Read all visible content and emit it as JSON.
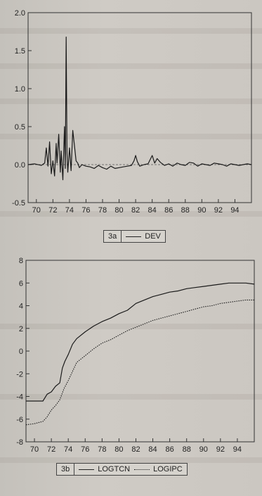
{
  "chart_data": [
    {
      "id": "3a",
      "type": "line",
      "legend_tag": "3a",
      "ylim": [
        -0.5,
        2.0
      ],
      "yticks": [
        "2.0",
        "1.5",
        "1.0",
        "0.5",
        "0.0",
        "-0.5"
      ],
      "ytick_values": [
        2.0,
        1.5,
        1.0,
        0.5,
        0.0,
        -0.5
      ],
      "xlim": [
        1969,
        1996
      ],
      "xticks": [
        "70",
        "72",
        "74",
        "76",
        "78",
        "80",
        "82",
        "84",
        "86",
        "88",
        "90",
        "92",
        "94"
      ],
      "xtick_values": [
        1970,
        1972,
        1974,
        1976,
        1978,
        1980,
        1982,
        1984,
        1986,
        1988,
        1990,
        1992,
        1994
      ],
      "series": [
        {
          "name": "DEV",
          "style": "solid",
          "x": [
            1969,
            1969.8,
            1970.6,
            1971.0,
            1971.2,
            1971.4,
            1971.6,
            1971.8,
            1972.0,
            1972.2,
            1972.4,
            1972.5,
            1972.7,
            1972.9,
            1973.0,
            1973.2,
            1973.4,
            1973.5,
            1973.6,
            1973.7,
            1973.8,
            1974.0,
            1974.2,
            1974.4,
            1974.6,
            1974.8,
            1975.0,
            1975.2,
            1975.5,
            1976.0,
            1976.5,
            1977.0,
            1977.5,
            1978.0,
            1978.5,
            1979.0,
            1979.5,
            1980.0,
            1980.5,
            1981.0,
            1981.5,
            1981.8,
            1982.0,
            1982.2,
            1982.5,
            1983.0,
            1983.5,
            1984.0,
            1984.3,
            1984.6,
            1985.0,
            1985.5,
            1986.0,
            1986.5,
            1987.0,
            1987.5,
            1988.0,
            1988.5,
            1989.0,
            1989.5,
            1990.0,
            1990.5,
            1991.0,
            1991.5,
            1992.0,
            1992.5,
            1993.0,
            1993.5,
            1994.0,
            1994.5,
            1995.0,
            1995.5,
            1996.0
          ],
          "y": [
            0.0,
            0.01,
            -0.01,
            0.02,
            0.22,
            -0.02,
            0.3,
            -0.12,
            0.05,
            -0.15,
            0.28,
            0.02,
            0.4,
            -0.1,
            0.18,
            -0.2,
            0.5,
            -0.05,
            1.68,
            0.15,
            -0.1,
            0.22,
            -0.08,
            0.45,
            0.25,
            0.05,
            0.02,
            -0.04,
            0.0,
            -0.02,
            -0.03,
            -0.05,
            -0.01,
            -0.04,
            -0.06,
            -0.02,
            -0.05,
            -0.04,
            -0.03,
            -0.02,
            -0.01,
            0.05,
            0.12,
            0.04,
            -0.02,
            0.0,
            0.01,
            0.12,
            0.02,
            0.08,
            0.03,
            -0.01,
            0.01,
            -0.02,
            0.02,
            0.0,
            -0.01,
            0.03,
            0.02,
            -0.02,
            0.01,
            0.0,
            -0.01,
            0.02,
            0.01,
            0.0,
            -0.02,
            0.01,
            0.0,
            -0.01,
            0.0,
            0.01,
            0.0
          ]
        }
      ]
    },
    {
      "id": "3b",
      "type": "line",
      "legend_tag": "3b",
      "ylim": [
        -8,
        8
      ],
      "yticks": [
        "8",
        "6",
        "4",
        "2",
        "0",
        "-2",
        "-4",
        "-6",
        "-8"
      ],
      "ytick_values": [
        8,
        6,
        4,
        2,
        0,
        -2,
        -4,
        -6,
        -8
      ],
      "xlim": [
        1969,
        1996
      ],
      "xticks": [
        "70",
        "72",
        "74",
        "76",
        "78",
        "80",
        "82",
        "84",
        "86",
        "88",
        "90",
        "92",
        "94"
      ],
      "xtick_values": [
        1970,
        1972,
        1974,
        1976,
        1978,
        1980,
        1982,
        1984,
        1986,
        1988,
        1990,
        1992,
        1994
      ],
      "series": [
        {
          "name": "LOGTCN",
          "style": "solid",
          "x": [
            1969,
            1970,
            1971,
            1971.5,
            1972,
            1972.5,
            1973,
            1973.3,
            1973.6,
            1974,
            1974.5,
            1975,
            1976,
            1977,
            1978,
            1979,
            1980,
            1981,
            1982,
            1983,
            1984,
            1985,
            1986,
            1987,
            1988,
            1989,
            1990,
            1991,
            1992,
            1993,
            1994,
            1995,
            1996
          ],
          "y": [
            -4.4,
            -4.4,
            -4.4,
            -3.8,
            -3.6,
            -3.1,
            -2.8,
            -1.5,
            -0.9,
            -0.3,
            0.6,
            1.1,
            1.7,
            2.2,
            2.6,
            2.9,
            3.3,
            3.6,
            4.2,
            4.5,
            4.8,
            5.0,
            5.2,
            5.3,
            5.5,
            5.6,
            5.7,
            5.8,
            5.9,
            6.0,
            6.0,
            6.0,
            5.9
          ]
        },
        {
          "name": "LOGIPC",
          "style": "dotted",
          "x": [
            1969,
            1970,
            1971,
            1971.5,
            1972,
            1972.5,
            1973,
            1973.5,
            1974,
            1974.5,
            1975,
            1976,
            1977,
            1978,
            1979,
            1980,
            1981,
            1982,
            1983,
            1984,
            1985,
            1986,
            1987,
            1988,
            1989,
            1990,
            1991,
            1992,
            1993,
            1994,
            1995,
            1996
          ],
          "y": [
            -6.5,
            -6.4,
            -6.2,
            -5.8,
            -5.2,
            -4.8,
            -4.3,
            -3.3,
            -2.6,
            -1.8,
            -1.0,
            -0.4,
            0.2,
            0.7,
            1.0,
            1.4,
            1.8,
            2.1,
            2.4,
            2.7,
            2.9,
            3.1,
            3.3,
            3.5,
            3.7,
            3.9,
            4.0,
            4.2,
            4.3,
            4.4,
            4.5,
            4.5
          ]
        }
      ]
    }
  ],
  "colors": {
    "line": "#1a1a1a",
    "background": "#cbc7c1"
  }
}
